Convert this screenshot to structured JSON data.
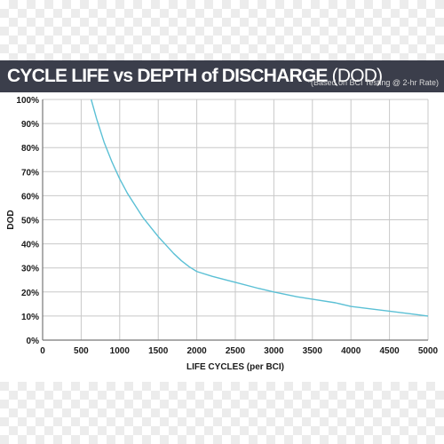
{
  "header": {
    "title_bold": "CYCLE LIFE vs DEPTH of DISCHARGE",
    "title_light": "(DOD)",
    "note": "*(Based on BCI Testing @ 2-hr Rate)"
  },
  "colors": {
    "header_bg": "#3b3e4b",
    "curve": "#5bc0d5",
    "grid": "#c8c8c8",
    "axis": "#777777"
  },
  "chart_data": {
    "type": "line",
    "title": "CYCLE LIFE vs DEPTH of DISCHARGE (DOD)",
    "xlabel": "LIFE CYCLES (per BCI)",
    "ylabel": "DOD",
    "xlim": [
      0,
      5000
    ],
    "ylim": [
      0,
      100
    ],
    "x_ticks": [
      0,
      500,
      1000,
      1500,
      2000,
      2500,
      3000,
      3500,
      4000,
      4500,
      5000
    ],
    "x_tick_labels": [
      "0",
      "500",
      "1000",
      "1500",
      "2000",
      "2500",
      "3000",
      "3500",
      "4000",
      "4500",
      "5000"
    ],
    "y_ticks": [
      0,
      10,
      20,
      30,
      40,
      50,
      60,
      70,
      80,
      90,
      100
    ],
    "y_tick_labels": [
      "0%",
      "10%",
      "20%",
      "30%",
      "40%",
      "50%",
      "60%",
      "70%",
      "80%",
      "90%",
      "100%"
    ],
    "grid": true,
    "series": [
      {
        "x": [
          630,
          700,
          800,
          900,
          1000,
          1100,
          1200,
          1300,
          1400,
          1500,
          1600,
          1700,
          1800,
          1900,
          2000,
          2200,
          2500,
          2800,
          3000,
          3300,
          3500,
          3800,
          4000,
          4300,
          4500,
          4800,
          5000
        ],
        "y": [
          100,
          92,
          82,
          74,
          67,
          61,
          56,
          51,
          47,
          43,
          39.5,
          36,
          33,
          30.5,
          28.5,
          26.5,
          24,
          21.5,
          20,
          18,
          17,
          15.5,
          14,
          12.8,
          12,
          10.8,
          10
        ]
      }
    ]
  }
}
